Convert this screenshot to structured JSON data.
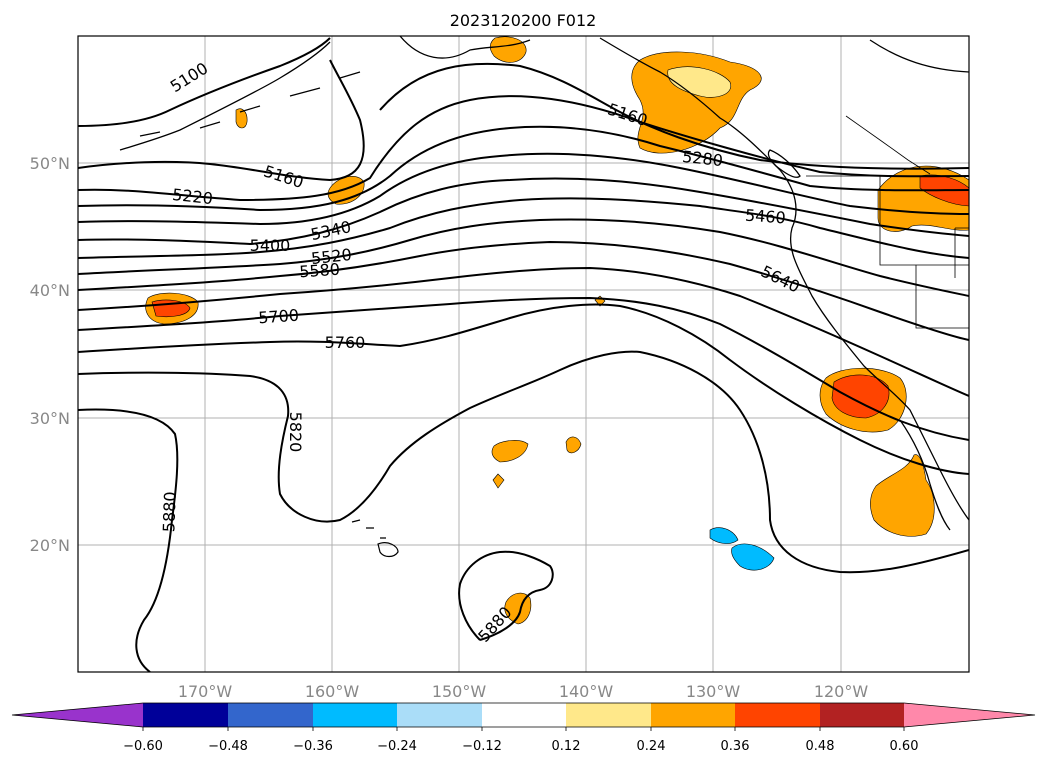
{
  "title": "2023120200 F012",
  "lat_labels": [
    "50°N",
    "40°N",
    "30°N",
    "20°N"
  ],
  "lon_labels": [
    "170°W",
    "160°W",
    "150°W",
    "140°W",
    "130°W",
    "120°W"
  ],
  "contour_labels": [
    "5100",
    "5160",
    "5220",
    "5160",
    "5280",
    "5340",
    "5400",
    "5460",
    "5520",
    "5580",
    "5640",
    "5700",
    "5760",
    "5820",
    "5880",
    "5880"
  ],
  "colorbar": {
    "ticks": [
      "−0.60",
      "−0.48",
      "−0.36",
      "−0.24",
      "−0.12",
      "0.12",
      "0.24",
      "0.36",
      "0.48",
      "0.60"
    ],
    "colors": [
      "#9933cc",
      "#000099",
      "#3366cc",
      "#00bbff",
      "#aaddf8",
      "#ffffff",
      "#ffe88a",
      "#ffa500",
      "#ff4400",
      "#b22222",
      "#ff88aa"
    ]
  }
}
